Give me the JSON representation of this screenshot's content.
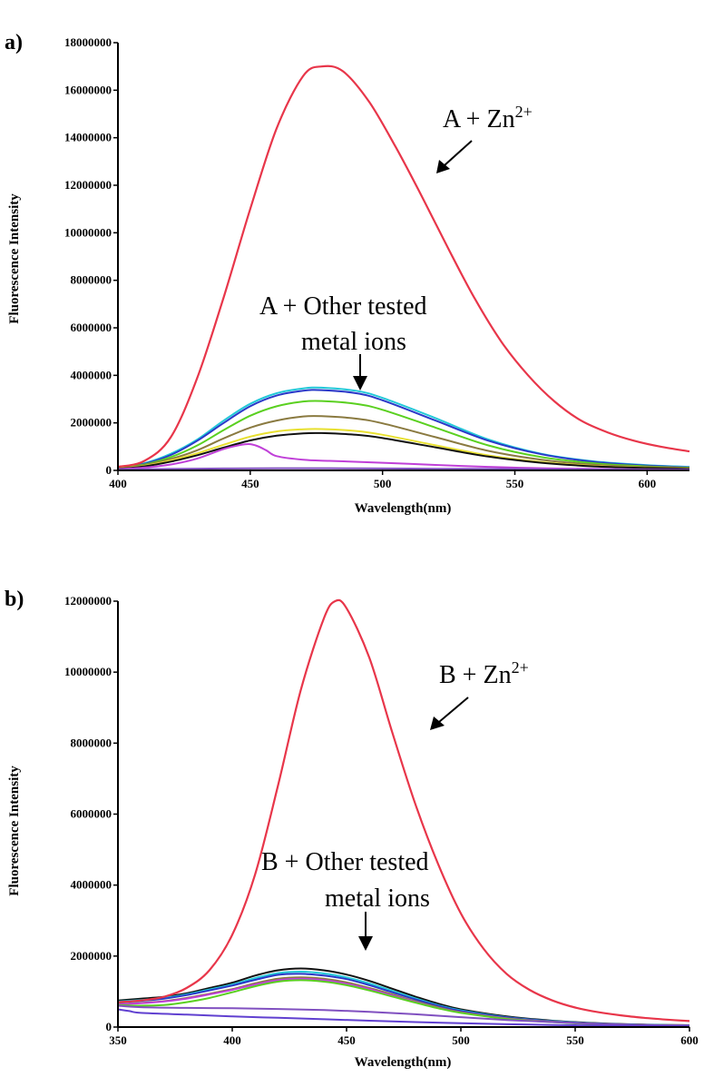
{
  "chart_data": [
    {
      "type": "line",
      "panel_label": "a)",
      "xlabel": "Wavelength(nm)",
      "ylabel": "Fluorescence Intensity",
      "xlim": [
        400,
        616
      ],
      "ylim": [
        0,
        18000000
      ],
      "xticks": [
        400,
        450,
        500,
        550,
        600
      ],
      "yticks": [
        0,
        2000000,
        4000000,
        6000000,
        8000000,
        10000000,
        12000000,
        14000000,
        16000000,
        18000000
      ],
      "annotations": [
        {
          "text": "A + Zn",
          "sup": "2+"
        },
        {
          "line1": "A + Other tested",
          "line2": "metal ions"
        }
      ],
      "series": [
        {
          "name": "A + Zn2+",
          "color": "#e8364a",
          "x": [
            400,
            410,
            420,
            430,
            440,
            450,
            460,
            470,
            477,
            485,
            495,
            505,
            515,
            525,
            535,
            545,
            555,
            565,
            575,
            585,
            595,
            605,
            616
          ],
          "y": [
            150000,
            400000,
            1400000,
            3900000,
            7300000,
            11000000,
            14400000,
            16600000,
            17000000,
            16800000,
            15500000,
            13600000,
            11500000,
            9300000,
            7200000,
            5400000,
            4000000,
            2900000,
            2100000,
            1600000,
            1250000,
            1000000,
            800000
          ]
        },
        {
          "name": "cyan",
          "color": "#23c8d8",
          "x": [
            400,
            410,
            420,
            430,
            440,
            450,
            460,
            470,
            477,
            490,
            500,
            520,
            540,
            560,
            580,
            600,
            616
          ],
          "y": [
            100000,
            300000,
            700000,
            1300000,
            2100000,
            2800000,
            3250000,
            3450000,
            3480000,
            3350000,
            3050000,
            2200000,
            1300000,
            700000,
            380000,
            220000,
            150000
          ]
        },
        {
          "name": "blue",
          "color": "#2a38c8",
          "x": [
            400,
            410,
            420,
            430,
            440,
            450,
            460,
            470,
            477,
            490,
            500,
            520,
            540,
            560,
            580,
            600,
            616
          ],
          "y": [
            100000,
            280000,
            650000,
            1250000,
            2000000,
            2700000,
            3150000,
            3350000,
            3380000,
            3250000,
            2950000,
            2100000,
            1250000,
            680000,
            360000,
            200000,
            130000
          ]
        },
        {
          "name": "green",
          "color": "#5ad020",
          "x": [
            400,
            410,
            420,
            430,
            440,
            450,
            460,
            470,
            477,
            490,
            500,
            520,
            540,
            560,
            580,
            600,
            616
          ],
          "y": [
            90000,
            250000,
            560000,
            1050000,
            1700000,
            2300000,
            2700000,
            2900000,
            2920000,
            2800000,
            2550000,
            1800000,
            1050000,
            560000,
            300000,
            170000,
            110000
          ]
        },
        {
          "name": "olive",
          "color": "#8a7a40",
          "x": [
            400,
            410,
            420,
            430,
            440,
            450,
            460,
            470,
            477,
            490,
            500,
            520,
            540,
            560,
            580,
            600,
            616
          ],
          "y": [
            80000,
            220000,
            480000,
            850000,
            1350000,
            1800000,
            2100000,
            2270000,
            2280000,
            2180000,
            1980000,
            1400000,
            820000,
            450000,
            240000,
            140000,
            100000
          ]
        },
        {
          "name": "yellow",
          "color": "#e8e030",
          "x": [
            400,
            410,
            420,
            430,
            440,
            450,
            460,
            470,
            477,
            490,
            500,
            520,
            540,
            560,
            580,
            600,
            616
          ],
          "y": [
            70000,
            190000,
            420000,
            720000,
            1080000,
            1420000,
            1640000,
            1730000,
            1740000,
            1660000,
            1500000,
            1060000,
            630000,
            350000,
            190000,
            110000,
            80000
          ]
        },
        {
          "name": "black",
          "color": "#111111",
          "x": [
            400,
            410,
            420,
            430,
            440,
            450,
            460,
            470,
            477,
            490,
            500,
            520,
            540,
            560,
            580,
            600,
            616
          ],
          "y": [
            60000,
            170000,
            370000,
            640000,
            960000,
            1260000,
            1460000,
            1560000,
            1570000,
            1500000,
            1360000,
            970000,
            580000,
            320000,
            170000,
            100000,
            70000
          ]
        },
        {
          "name": "magenta",
          "color": "#c040d8",
          "x": [
            400,
            410,
            420,
            430,
            440,
            448,
            452,
            456,
            460,
            470,
            480,
            500,
            520,
            540,
            560,
            580,
            600,
            616
          ],
          "y": [
            50000,
            120000,
            250000,
            500000,
            900000,
            1100000,
            1050000,
            850000,
            600000,
            450000,
            400000,
            320000,
            230000,
            150000,
            90000,
            60000,
            40000,
            30000
          ]
        },
        {
          "name": "purple",
          "color": "#8050c0",
          "x": [
            400,
            420,
            440,
            460,
            480,
            500,
            520,
            540,
            560,
            580,
            600,
            616
          ],
          "y": [
            40000,
            60000,
            80000,
            90000,
            90000,
            80000,
            70000,
            60000,
            50000,
            40000,
            30000,
            25000
          ]
        }
      ]
    },
    {
      "type": "line",
      "panel_label": "b)",
      "xlabel": "Wavelength(nm)",
      "ylabel": "Fluorescence Intensity",
      "xlim": [
        350,
        600
      ],
      "ylim": [
        0,
        12000000
      ],
      "xticks": [
        350,
        400,
        450,
        500,
        550,
        600
      ],
      "yticks": [
        0,
        2000000,
        4000000,
        6000000,
        8000000,
        10000000,
        12000000
      ],
      "annotations": [
        {
          "text": "B + Zn",
          "sup": "2+"
        },
        {
          "line1": "B + Other tested",
          "line2": "metal ions"
        }
      ],
      "series": [
        {
          "name": "B + Zn2+",
          "color": "#e8364a",
          "x": [
            350,
            360,
            370,
            380,
            390,
            400,
            410,
            420,
            430,
            440,
            445,
            450,
            460,
            470,
            480,
            490,
            500,
            510,
            520,
            530,
            540,
            550,
            560,
            570,
            580,
            590,
            600
          ],
          "y": [
            700000,
            750000,
            850000,
            1100000,
            1600000,
            2600000,
            4300000,
            6800000,
            9500000,
            11500000,
            12000000,
            11800000,
            10400000,
            8300000,
            6300000,
            4600000,
            3200000,
            2200000,
            1500000,
            1050000,
            750000,
            550000,
            420000,
            330000,
            260000,
            210000,
            170000
          ]
        },
        {
          "name": "black",
          "color": "#111111",
          "x": [
            350,
            360,
            370,
            380,
            390,
            400,
            410,
            420,
            430,
            440,
            450,
            460,
            470,
            480,
            490,
            500,
            520,
            540,
            560,
            580,
            600
          ],
          "y": [
            750000,
            800000,
            850000,
            950000,
            1100000,
            1250000,
            1450000,
            1600000,
            1650000,
            1600000,
            1480000,
            1300000,
            1080000,
            860000,
            660000,
            500000,
            300000,
            180000,
            110000,
            70000,
            50000
          ]
        },
        {
          "name": "cyan",
          "color": "#23c8d8",
          "x": [
            350,
            360,
            370,
            380,
            390,
            400,
            410,
            420,
            430,
            440,
            450,
            460,
            470,
            480,
            490,
            500,
            520,
            540,
            560,
            580,
            600
          ],
          "y": [
            720000,
            760000,
            820000,
            920000,
            1060000,
            1200000,
            1380000,
            1520000,
            1560000,
            1510000,
            1400000,
            1230000,
            1020000,
            810000,
            620000,
            470000,
            280000,
            170000,
            100000,
            65000,
            45000
          ]
        },
        {
          "name": "blue",
          "color": "#2a38c8",
          "x": [
            350,
            360,
            370,
            380,
            390,
            400,
            410,
            420,
            430,
            440,
            450,
            460,
            470,
            480,
            490,
            500,
            520,
            540,
            560,
            580,
            600
          ],
          "y": [
            700000,
            740000,
            800000,
            900000,
            1030000,
            1170000,
            1330000,
            1470000,
            1500000,
            1450000,
            1350000,
            1180000,
            980000,
            780000,
            600000,
            450000,
            270000,
            160000,
            95000,
            60000,
            40000
          ]
        },
        {
          "name": "olive",
          "color": "#8a7a40",
          "x": [
            350,
            360,
            370,
            380,
            390,
            400,
            410,
            420,
            430,
            440,
            450,
            460,
            470,
            480,
            490,
            500,
            520,
            540,
            560,
            580,
            600
          ],
          "y": [
            650000,
            680000,
            730000,
            820000,
            940000,
            1070000,
            1230000,
            1360000,
            1400000,
            1360000,
            1260000,
            1100000,
            920000,
            730000,
            560000,
            420000,
            250000,
            150000,
            90000,
            55000,
            40000
          ]
        },
        {
          "name": "magenta",
          "color": "#c040d8",
          "x": [
            350,
            360,
            370,
            380,
            390,
            400,
            410,
            420,
            430,
            440,
            450,
            460,
            470,
            480,
            490,
            500,
            520,
            540,
            560,
            580,
            600
          ],
          "y": [
            640000,
            670000,
            720000,
            800000,
            920000,
            1050000,
            1200000,
            1320000,
            1360000,
            1320000,
            1220000,
            1070000,
            890000,
            710000,
            540000,
            410000,
            240000,
            145000,
            85000,
            55000,
            38000
          ]
        },
        {
          "name": "green",
          "color": "#5ad020",
          "x": [
            350,
            360,
            370,
            380,
            390,
            400,
            410,
            420,
            430,
            440,
            450,
            460,
            470,
            480,
            490,
            500,
            520,
            540,
            560,
            580,
            600
          ],
          "y": [
            620000,
            600000,
            620000,
            700000,
            820000,
            980000,
            1150000,
            1280000,
            1320000,
            1280000,
            1180000,
            1030000,
            860000,
            690000,
            530000,
            400000,
            230000,
            140000,
            80000,
            50000,
            35000
          ]
        },
        {
          "name": "purple",
          "color": "#8050c0",
          "x": [
            350,
            360,
            380,
            400,
            420,
            440,
            460,
            480,
            500,
            520,
            540,
            560,
            580,
            600
          ],
          "y": [
            600000,
            560000,
            540000,
            530000,
            510000,
            480000,
            430000,
            360000,
            280000,
            200000,
            140000,
            90000,
            60000,
            40000
          ]
        },
        {
          "name": "violet",
          "color": "#6040d0",
          "x": [
            350,
            355,
            360,
            380,
            400,
            420,
            440,
            460,
            480,
            500,
            520,
            540,
            560,
            580,
            600
          ],
          "y": [
            500000,
            450000,
            400000,
            350000,
            300000,
            260000,
            220000,
            180000,
            140000,
            110000,
            80000,
            60000,
            40000,
            30000,
            20000
          ]
        }
      ]
    }
  ]
}
